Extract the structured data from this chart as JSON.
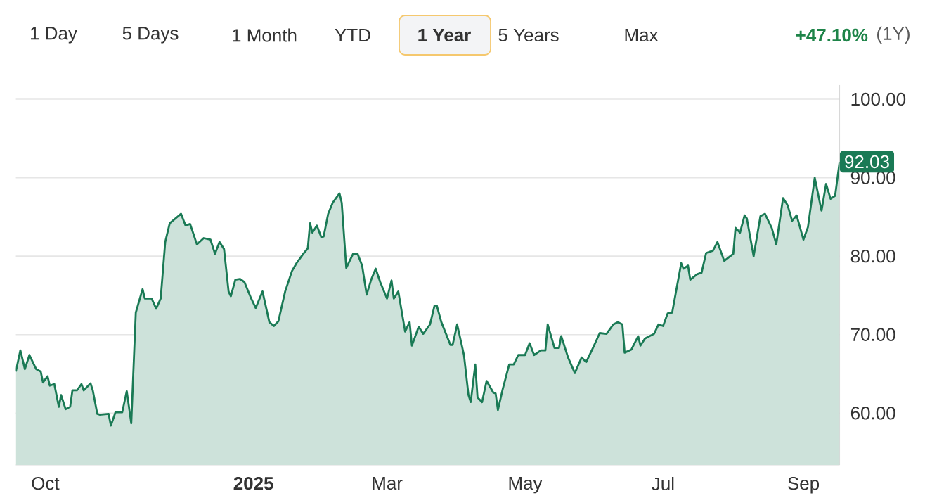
{
  "chart_data": {
    "type": "area",
    "annotations": [
      "1 Day",
      "5 Days",
      "1 Month",
      "YTD",
      "1 Year",
      "5 Years",
      "Max",
      "+47.10%",
      "(1Y)",
      {
        "text": "92.03",
        "x": "2025-09-17",
        "y": 92.03
      }
    ],
    "x": [
      "2024-09-18",
      "2024-09-20",
      "2024-09-22",
      "2024-09-24",
      "2024-09-27",
      "2024-09-29",
      "2024-09-30",
      "2024-10-02",
      "2024-10-03",
      "2024-10-05",
      "2024-10-07",
      "2024-10-08",
      "2024-10-10",
      "2024-10-12",
      "2024-10-13",
      "2024-10-15",
      "2024-10-17",
      "2024-10-18",
      "2024-10-21",
      "2024-10-22",
      "2024-10-24",
      "2024-10-25",
      "2024-10-29",
      "2024-10-30",
      "2024-11-01",
      "2024-11-04",
      "2024-11-06",
      "2024-11-08",
      "2024-11-10",
      "2024-11-13",
      "2024-11-14",
      "2024-11-17",
      "2024-11-19",
      "2024-11-21",
      "2024-11-23",
      "2024-11-25",
      "2024-11-30",
      "2024-12-02",
      "2024-12-04",
      "2024-12-07",
      "2024-12-10",
      "2024-12-13",
      "2024-12-15",
      "2024-12-17",
      "2024-12-19",
      "2024-12-21",
      "2024-12-22",
      "2024-12-24",
      "2024-12-26",
      "2024-12-28",
      "2024-12-31",
      "2025-01-02",
      "2025-01-05",
      "2025-01-08",
      "2025-01-10",
      "2025-01-12",
      "2025-01-15",
      "2025-01-18",
      "2025-01-20",
      "2025-01-23",
      "2025-01-25",
      "2025-01-26",
      "2025-01-27",
      "2025-01-29",
      "2025-01-31",
      "2025-02-01",
      "2025-02-03",
      "2025-02-05",
      "2025-02-08",
      "2025-02-09",
      "2025-02-11",
      "2025-02-14",
      "2025-02-16",
      "2025-02-18",
      "2025-02-20",
      "2025-02-22",
      "2025-02-24",
      "2025-02-26",
      "2025-03-01",
      "2025-03-03",
      "2025-03-04",
      "2025-03-06",
      "2025-03-09",
      "2025-03-11",
      "2025-03-12",
      "2025-03-15",
      "2025-03-17",
      "2025-03-20",
      "2025-03-22",
      "2025-03-23",
      "2025-03-25",
      "2025-03-29",
      "2025-03-30",
      "2025-04-01",
      "2025-04-04",
      "2025-04-06",
      "2025-04-07",
      "2025-04-09",
      "2025-04-10",
      "2025-04-12",
      "2025-04-14",
      "2025-04-17",
      "2025-04-18",
      "2025-04-19",
      "2025-04-21",
      "2025-04-24",
      "2025-04-26",
      "2025-04-28",
      "2025-05-01",
      "2025-05-03",
      "2025-05-05",
      "2025-05-08",
      "2025-05-10",
      "2025-05-11",
      "2025-05-14",
      "2025-05-16",
      "2025-05-17",
      "2025-05-20",
      "2025-05-23",
      "2025-05-26",
      "2025-05-28",
      "2025-05-31",
      "2025-06-03",
      "2025-06-06",
      "2025-06-09",
      "2025-06-11",
      "2025-06-13",
      "2025-06-14",
      "2025-06-17",
      "2025-06-20",
      "2025-06-21",
      "2025-06-23",
      "2025-06-27",
      "2025-06-29",
      "2025-07-01",
      "2025-07-03",
      "2025-07-05",
      "2025-07-09",
      "2025-07-10",
      "2025-07-12",
      "2025-07-13",
      "2025-07-16",
      "2025-07-18",
      "2025-07-20",
      "2025-07-23",
      "2025-07-25",
      "2025-07-28",
      "2025-08-01",
      "2025-08-02",
      "2025-08-04",
      "2025-08-06",
      "2025-08-07",
      "2025-08-10",
      "2025-08-13",
      "2025-08-15",
      "2025-08-18",
      "2025-08-20",
      "2025-08-23",
      "2025-08-25",
      "2025-08-27",
      "2025-08-29",
      "2025-09-01",
      "2025-09-03",
      "2025-09-06",
      "2025-09-09",
      "2025-09-11",
      "2025-09-13",
      "2025-09-15",
      "2025-09-17"
    ],
    "series": [
      {
        "color": "#1a7a55",
        "values": [
          65.3,
          68.0,
          65.6,
          67.4,
          65.6,
          65.3,
          63.9,
          64.7,
          63.5,
          63.7,
          60.8,
          62.3,
          60.5,
          60.8,
          62.9,
          62.9,
          63.7,
          62.9,
          63.8,
          62.9,
          59.9,
          59.8,
          59.9,
          58.4,
          60.1,
          60.1,
          62.8,
          58.7,
          72.8,
          75.8,
          74.6,
          74.6,
          73.3,
          74.6,
          81.8,
          84.2,
          85.4,
          83.9,
          84.1,
          81.5,
          82.3,
          82.1,
          80.3,
          81.8,
          80.9,
          75.5,
          74.9,
          77.0,
          77.1,
          76.7,
          74.6,
          73.4,
          75.5,
          71.6,
          71.1,
          71.7,
          75.5,
          78.1,
          79.1,
          80.3,
          81.0,
          84.2,
          83.0,
          83.9,
          82.4,
          82.5,
          85.4,
          86.8,
          88.0,
          86.8,
          78.5,
          80.3,
          80.3,
          78.8,
          75.1,
          77.0,
          78.4,
          76.7,
          74.6,
          76.9,
          74.6,
          75.5,
          70.4,
          71.6,
          68.6,
          71.0,
          70.1,
          71.3,
          73.7,
          73.7,
          71.6,
          68.7,
          68.7,
          71.3,
          67.4,
          62.3,
          61.4,
          66.2,
          62.0,
          61.4,
          64.1,
          62.6,
          62.5,
          60.4,
          62.9,
          66.2,
          66.2,
          67.4,
          67.4,
          68.9,
          67.4,
          68.0,
          68.0,
          71.3,
          68.3,
          68.3,
          69.8,
          67.1,
          65.1,
          67.1,
          66.5,
          68.3,
          70.2,
          70.1,
          71.3,
          71.6,
          71.3,
          67.7,
          68.1,
          69.8,
          68.6,
          69.5,
          70.1,
          71.3,
          71.1,
          72.7,
          72.8,
          79.1,
          78.4,
          78.8,
          77.0,
          77.7,
          77.9,
          80.4,
          80.7,
          81.8,
          79.4,
          80.3,
          83.6,
          83.0,
          85.2,
          84.8,
          80.0,
          85.1,
          85.4,
          83.6,
          81.5,
          87.4,
          86.5,
          84.5,
          85.2,
          82.1,
          83.7,
          90.0,
          85.8,
          89.2,
          87.3,
          87.7,
          92.03
        ]
      }
    ],
    "xlim": [
      "2024-09-18",
      "2025-09-17"
    ],
    "xticks": [
      {
        "value": "2024-10-01",
        "label": "Oct"
      },
      {
        "value": "2025-01-01",
        "label": "**2025**"
      },
      {
        "value": "2025-03-01",
        "label": "Mar"
      },
      {
        "value": "2025-05-01",
        "label": "May"
      },
      {
        "value": "2025-07-01",
        "label": "Jul"
      },
      {
        "value": "2025-09-01",
        "label": "Sep"
      }
    ],
    "ylim": [
      53.4,
      101.8
    ],
    "yticks": [
      {
        "value": 60,
        "label": "60.00"
      },
      {
        "value": 70,
        "label": "70.00"
      },
      {
        "value": 80,
        "label": "80.00"
      },
      {
        "value": 90,
        "label": "90.00"
      },
      {
        "value": 100,
        "label": "100.00"
      }
    ],
    "grid": "y"
  }
}
